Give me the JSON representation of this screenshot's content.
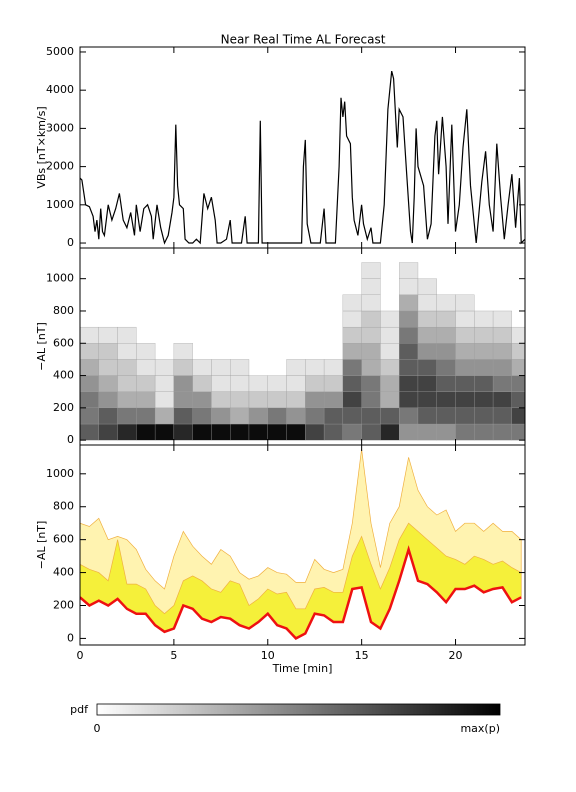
{
  "chart_data": [
    {
      "type": "line",
      "title": "Near Real Time AL Forecast",
      "ylabel": "VBs [nT×km/s]",
      "color": "#000000",
      "xlim": [
        0,
        23.7
      ],
      "xticks": [
        0,
        5,
        10,
        15,
        20
      ],
      "ylim": [
        -130,
        5130
      ],
      "yticks": [
        0,
        1000,
        2000,
        3000,
        4000,
        5000
      ],
      "x": [
        0,
        0.1,
        0.3,
        0.5,
        0.7,
        0.8,
        0.9,
        1.0,
        1.1,
        1.2,
        1.3,
        1.5,
        1.7,
        1.9,
        2.1,
        2.3,
        2.5,
        2.7,
        2.9,
        3.0,
        3.2,
        3.4,
        3.6,
        3.8,
        3.9,
        4.1,
        4.3,
        4.5,
        4.7,
        4.9,
        5.0,
        5.1,
        5.2,
        5.3,
        5.5,
        5.6,
        5.8,
        6.0,
        6.2,
        6.4,
        6.6,
        6.8,
        7.0,
        7.2,
        7.3,
        7.5,
        7.8,
        8.0,
        8.1,
        8.6,
        8.8,
        8.9,
        9.5,
        9.6,
        9.7,
        10.5,
        11.8,
        11.9,
        12.0,
        12.1,
        12.3,
        12.8,
        13.0,
        13.1,
        13.6,
        13.8,
        13.9,
        14.0,
        14.1,
        14.2,
        14.4,
        14.5,
        14.6,
        14.8,
        15.0,
        15.1,
        15.3,
        15.5,
        15.6,
        16.0,
        16.2,
        16.4,
        16.6,
        16.7,
        16.9,
        17.0,
        17.2,
        17.4,
        17.6,
        17.7,
        17.8,
        17.9,
        18.0,
        18.3,
        18.5,
        18.7,
        18.9,
        19.0,
        19.1,
        19.3,
        19.5,
        19.6,
        19.8,
        20.0,
        20.2,
        20.4,
        20.6,
        20.8,
        21.0,
        21.1,
        21.4,
        21.6,
        21.8,
        22.0,
        22.2,
        22.4,
        22.6,
        22.8,
        23.0,
        23.2,
        23.4,
        23.5,
        23.7
      ],
      "y": [
        1700,
        1650,
        1000,
        950,
        700,
        300,
        600,
        100,
        900,
        300,
        200,
        1000,
        600,
        900,
        1300,
        600,
        400,
        800,
        200,
        1000,
        300,
        900,
        1000,
        700,
        100,
        1000,
        400,
        0,
        200,
        800,
        1200,
        3100,
        1500,
        1000,
        900,
        100,
        0,
        0,
        100,
        0,
        1300,
        900,
        1200,
        600,
        0,
        0,
        100,
        600,
        0,
        0,
        700,
        0,
        0,
        3200,
        0,
        0,
        0,
        2000,
        2700,
        500,
        0,
        0,
        900,
        0,
        0,
        2000,
        3800,
        3300,
        3700,
        2800,
        2600,
        1200,
        600,
        200,
        1000,
        500,
        100,
        400,
        0,
        0,
        1000,
        3500,
        4500,
        4300,
        2500,
        3500,
        3300,
        1800,
        300,
        0,
        1200,
        3000,
        2000,
        1500,
        100,
        500,
        2800,
        3200,
        1800,
        3300,
        2000,
        500,
        3100,
        300,
        1000,
        2500,
        3500,
        1500,
        500,
        0,
        1600,
        2400,
        1000,
        300,
        2600,
        1200,
        100,
        1000,
        1800,
        400,
        1700,
        0,
        100
      ]
    },
    {
      "type": "heatmap",
      "ylabel": "−AL [nT]",
      "xlim": [
        0,
        23.7
      ],
      "xticks": [
        0,
        5,
        10,
        15,
        20
      ],
      "ylim": [
        -30,
        1190
      ],
      "yticks": [
        0,
        200,
        400,
        600,
        800,
        1000
      ],
      "x_bins": [
        0,
        1,
        2,
        3,
        4,
        5,
        6,
        7,
        8,
        9,
        10,
        11,
        12,
        13,
        14,
        15,
        16,
        17,
        18,
        19,
        20,
        21,
        22,
        23,
        24
      ],
      "y_bins": [
        0,
        100,
        200,
        300,
        400,
        500,
        600,
        700,
        800,
        900,
        1000,
        1100,
        1200
      ],
      "z": [
        [
          6,
          5,
          5,
          4,
          3,
          2,
          1,
          0,
          0,
          0,
          0,
          0
        ],
        [
          7,
          6,
          4,
          3,
          2,
          2,
          1,
          0,
          0,
          0,
          0,
          0
        ],
        [
          8,
          5,
          3,
          2,
          2,
          1,
          1,
          0,
          0,
          0,
          0,
          0
        ],
        [
          9,
          5,
          3,
          2,
          1,
          1,
          0,
          0,
          0,
          0,
          0,
          0
        ],
        [
          9,
          3,
          1,
          1,
          1,
          0,
          0,
          0,
          0,
          0,
          0,
          0
        ],
        [
          8,
          6,
          4,
          4,
          2,
          1,
          0,
          0,
          0,
          0,
          0,
          0
        ],
        [
          9,
          5,
          4,
          2,
          1,
          0,
          0,
          0,
          0,
          0,
          0,
          0
        ],
        [
          9,
          4,
          2,
          1,
          1,
          0,
          0,
          0,
          0,
          0,
          0,
          0
        ],
        [
          9,
          3,
          2,
          1,
          1,
          0,
          0,
          0,
          0,
          0,
          0,
          0
        ],
        [
          9,
          4,
          2,
          1,
          0,
          0,
          0,
          0,
          0,
          0,
          0,
          0
        ],
        [
          9,
          5,
          2,
          1,
          0,
          0,
          0,
          0,
          0,
          0,
          0,
          0
        ],
        [
          9,
          4,
          2,
          1,
          1,
          0,
          0,
          0,
          0,
          0,
          0,
          0
        ],
        [
          7,
          5,
          4,
          2,
          1,
          0,
          0,
          0,
          0,
          0,
          0,
          0
        ],
        [
          6,
          6,
          4,
          2,
          1,
          0,
          0,
          0,
          0,
          0,
          0,
          0
        ],
        [
          5,
          6,
          7,
          6,
          5,
          3,
          2,
          1,
          1,
          0,
          0,
          0
        ],
        [
          6,
          6,
          5,
          5,
          3,
          3,
          2,
          2,
          1,
          1,
          1,
          0
        ],
        [
          8,
          6,
          3,
          3,
          2,
          1,
          1,
          1,
          0,
          0,
          0,
          0
        ],
        [
          4,
          5,
          7,
          7,
          6,
          6,
          5,
          4,
          3,
          1,
          1,
          0
        ],
        [
          4,
          6,
          7,
          7,
          6,
          4,
          3,
          2,
          1,
          1,
          0,
          0
        ],
        [
          4,
          6,
          7,
          6,
          5,
          4,
          3,
          2,
          1,
          0,
          0,
          0
        ],
        [
          5,
          6,
          7,
          6,
          4,
          3,
          2,
          1,
          1,
          0,
          0,
          0
        ],
        [
          5,
          6,
          7,
          6,
          4,
          3,
          2,
          1,
          0,
          0,
          0,
          0
        ],
        [
          5,
          6,
          7,
          5,
          4,
          3,
          2,
          1,
          0,
          0,
          0,
          0
        ],
        [
          5,
          7,
          6,
          5,
          3,
          2,
          1,
          0,
          0,
          0,
          0,
          0
        ]
      ]
    },
    {
      "type": "band",
      "ylabel": "−AL [nT]",
      "xlabel": "Time [min]",
      "xlim": [
        0,
        23.7
      ],
      "xticks": [
        0,
        5,
        10,
        15,
        20
      ],
      "ylim": [
        -40,
        1175
      ],
      "yticks": [
        0,
        200,
        400,
        600,
        800,
        1000
      ],
      "x": [
        0,
        0.5,
        1,
        1.5,
        2,
        2.5,
        3,
        3.5,
        4,
        4.5,
        5,
        5.5,
        6,
        6.5,
        7,
        7.5,
        8,
        8.5,
        9,
        9.5,
        10,
        10.5,
        11,
        11.5,
        12,
        12.5,
        13,
        13.5,
        14,
        14.5,
        15,
        15.5,
        16,
        16.5,
        17,
        17.5,
        18,
        18.5,
        19,
        19.5,
        20,
        20.5,
        21,
        21.5,
        22,
        22.5,
        23,
        23.5
      ],
      "series": [
        {
          "color": "#fff3b0",
          "values": [
            700,
            680,
            730,
            600,
            620,
            600,
            540,
            420,
            350,
            300,
            500,
            650,
            560,
            500,
            450,
            540,
            500,
            400,
            360,
            380,
            430,
            400,
            390,
            340,
            340,
            480,
            420,
            400,
            420,
            700,
            1150,
            700,
            430,
            700,
            800,
            1100,
            900,
            800,
            750,
            780,
            650,
            700,
            700,
            650,
            700,
            650,
            650,
            600
          ]
        },
        {
          "color": "#f5f03a",
          "values": [
            450,
            420,
            400,
            350,
            600,
            330,
            330,
            300,
            200,
            150,
            200,
            350,
            380,
            350,
            300,
            280,
            350,
            330,
            200,
            240,
            300,
            270,
            280,
            180,
            180,
            300,
            310,
            280,
            280,
            500,
            620,
            450,
            300,
            430,
            600,
            700,
            650,
            600,
            550,
            500,
            480,
            450,
            500,
            480,
            450,
            470,
            430,
            400
          ]
        },
        {
          "color": "#ee1111",
          "values": [
            250,
            200,
            230,
            200,
            240,
            180,
            150,
            150,
            80,
            40,
            60,
            200,
            180,
            120,
            100,
            130,
            120,
            80,
            60,
            100,
            150,
            80,
            60,
            0,
            30,
            150,
            140,
            100,
            100,
            300,
            310,
            100,
            60,
            180,
            350,
            540,
            350,
            330,
            280,
            220,
            300,
            300,
            320,
            280,
            300,
            310,
            220,
            250
          ]
        }
      ]
    }
  ],
  "colorbar": {
    "label": "pdf",
    "min_label": "0",
    "max_label": "max(p)"
  }
}
